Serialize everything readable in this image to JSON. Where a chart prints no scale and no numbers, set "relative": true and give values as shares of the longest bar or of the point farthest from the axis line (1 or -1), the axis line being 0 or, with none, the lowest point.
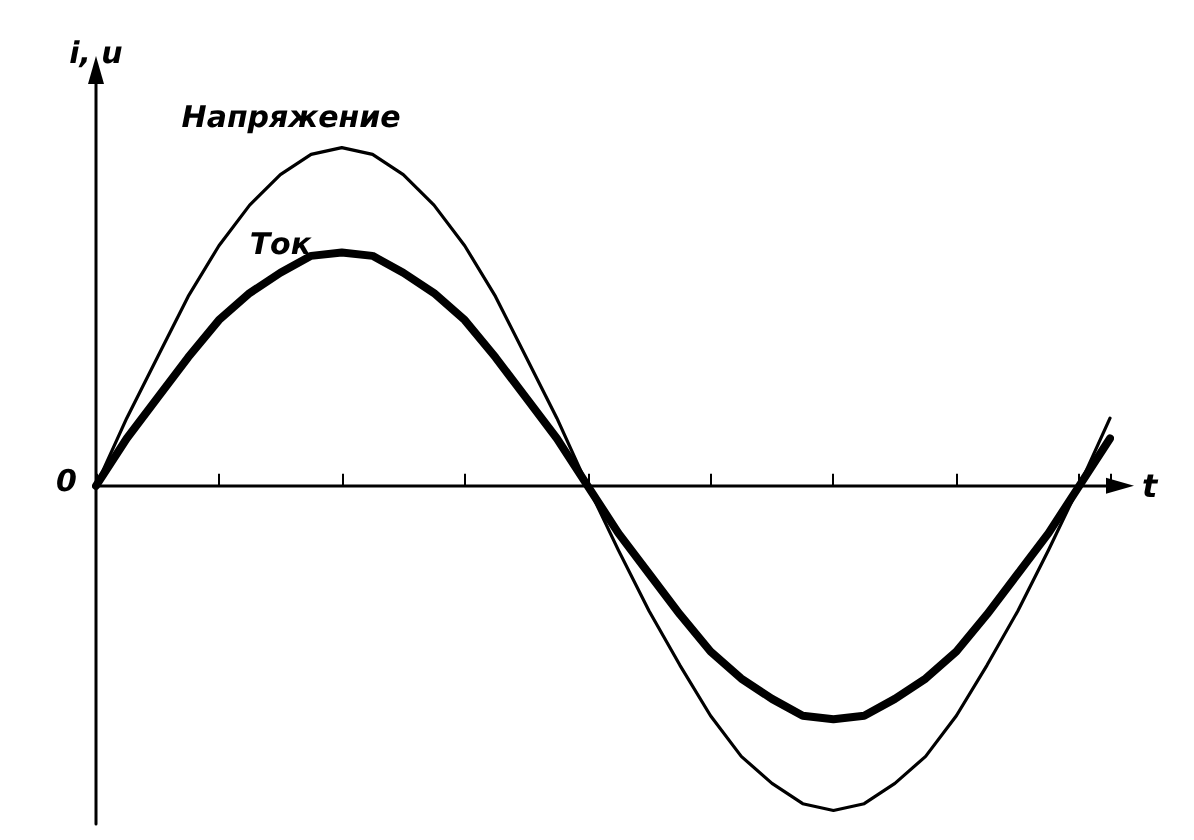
{
  "chart_data": {
    "type": "line",
    "relative": true,
    "xlabel": "t",
    "ylabel": "i, u",
    "annotations": [
      "0"
    ],
    "marker": "none",
    "line_style": "solid",
    "legend": false,
    "grid": false,
    "categories": [
      null,
      null,
      null,
      null,
      null,
      null,
      null,
      null,
      null,
      null,
      null,
      null,
      null,
      null,
      null,
      null,
      null,
      null,
      null,
      null,
      null,
      null,
      null,
      null,
      null,
      null,
      null,
      null,
      null,
      null,
      null,
      null,
      null,
      null
    ],
    "series": [
      {
        "name": "Напряжение",
        "color": "#000000",
        "values": [
          0,
          0.2,
          0.38,
          0.56,
          0.71,
          0.83,
          0.92,
          0.98,
          1,
          0.98,
          0.92,
          0.83,
          0.71,
          0.56,
          0.38,
          0.2,
          0,
          -0.19,
          -0.37,
          -0.53,
          -0.68,
          -0.8,
          -0.88,
          -0.94,
          -0.96,
          -0.94,
          -0.88,
          -0.8,
          -0.68,
          -0.53,
          -0.37,
          -0.19,
          0,
          0.2
        ]
      },
      {
        "name": "Ток",
        "color": "#000000",
        "values": [
          0,
          0.14,
          0.26,
          0.38,
          0.49,
          0.57,
          0.63,
          0.68,
          0.69,
          0.68,
          0.63,
          0.57,
          0.49,
          0.38,
          0.26,
          0.14,
          0,
          -0.14,
          -0.26,
          -0.38,
          -0.49,
          -0.57,
          -0.63,
          -0.68,
          -0.69,
          -0.68,
          -0.63,
          -0.57,
          -0.49,
          -0.38,
          -0.26,
          -0.14,
          0,
          0.14
        ]
      }
    ]
  }
}
